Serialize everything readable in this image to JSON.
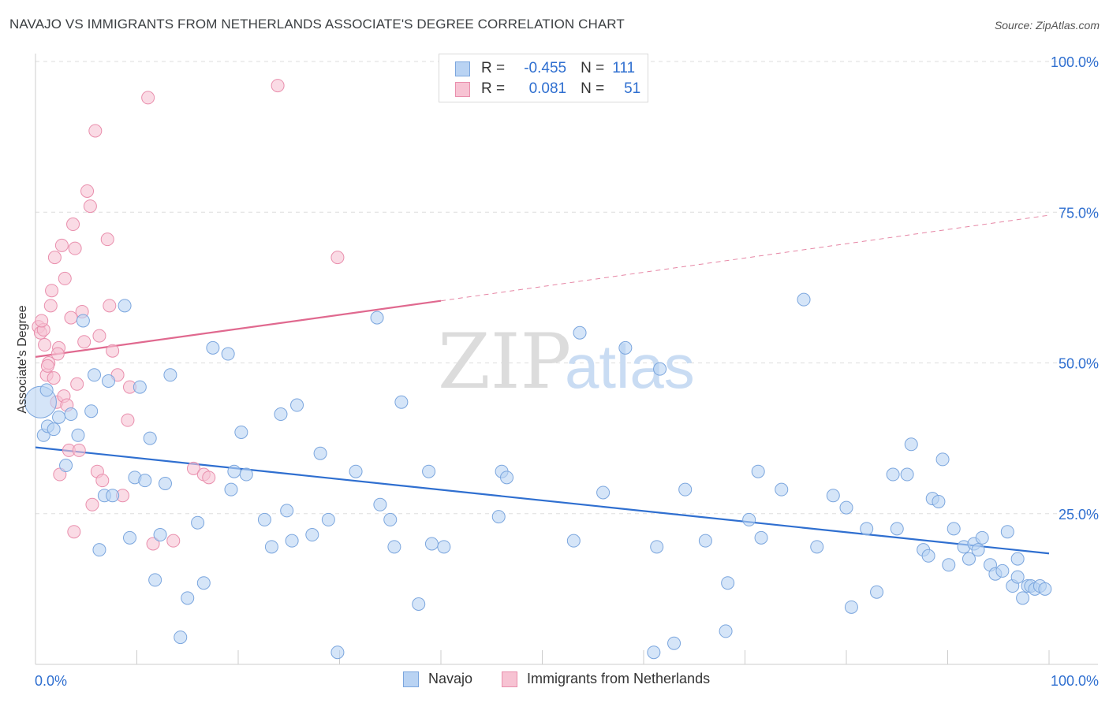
{
  "title": "NAVAJO VS IMMIGRANTS FROM NETHERLANDS ASSOCIATE'S DEGREE CORRELATION CHART",
  "source": "Source: ZipAtlas.com",
  "watermark": {
    "zip": "ZIP",
    "atlas": "atlas"
  },
  "legend_top": {
    "rows": [
      {
        "r_label": "R =",
        "r_value": "-0.455",
        "n_label": "N =",
        "n_value": "111"
      },
      {
        "r_label": "R =",
        "r_value": "0.081",
        "n_label": "N =",
        "n_value": "51"
      }
    ]
  },
  "colors": {
    "navajo_fill": "#b9d3f3",
    "navajo_stroke": "#7ba6de",
    "navajo_line": "#2f6fd0",
    "neth_fill": "#f7c3d3",
    "neth_stroke": "#e98fad",
    "neth_line": "#e0698f",
    "axis_label": "#2f6fd0",
    "grid": "#dddddd"
  },
  "chart_data": {
    "type": "scatter",
    "title": "NAVAJO VS IMMIGRANTS FROM NETHERLANDS ASSOCIATE'S DEGREE CORRELATION CHART",
    "xlabel": "",
    "ylabel": "Associate's Degree",
    "xlim": [
      0,
      100
    ],
    "ylim": [
      0,
      100
    ],
    "x_tick_labels": [
      "0.0%",
      "100.0%"
    ],
    "y_tick_labels": [
      "25.0%",
      "50.0%",
      "75.0%",
      "100.0%"
    ],
    "y_ticks": [
      25,
      50,
      75,
      100
    ],
    "grid": true,
    "legend": "bottom-center",
    "series": [
      {
        "name": "Navajo",
        "points": [
          [
            0.5,
            43.5
          ],
          [
            0.8,
            38
          ],
          [
            1.2,
            39.5
          ],
          [
            1.8,
            39
          ],
          [
            2.3,
            41
          ],
          [
            1.1,
            45.5
          ],
          [
            3,
            33
          ],
          [
            3.5,
            41.5
          ],
          [
            4.2,
            38
          ],
          [
            4.7,
            57
          ],
          [
            5.5,
            42
          ],
          [
            5.8,
            48
          ],
          [
            6.3,
            19
          ],
          [
            6.8,
            28
          ],
          [
            7.6,
            28
          ],
          [
            7.2,
            47
          ],
          [
            8.8,
            59.5
          ],
          [
            9.3,
            21
          ],
          [
            9.8,
            31
          ],
          [
            10.3,
            46
          ],
          [
            10.8,
            30.5
          ],
          [
            11.3,
            37.5
          ],
          [
            11.8,
            14
          ],
          [
            12.3,
            21.5
          ],
          [
            12.8,
            30
          ],
          [
            13.3,
            48
          ],
          [
            14.3,
            4.5
          ],
          [
            15,
            11
          ],
          [
            16,
            23.5
          ],
          [
            16.6,
            13.5
          ],
          [
            17.5,
            52.5
          ],
          [
            19,
            51.5
          ],
          [
            19.3,
            29
          ],
          [
            19.6,
            32
          ],
          [
            20.3,
            38.5
          ],
          [
            20.8,
            31.5
          ],
          [
            22.6,
            24
          ],
          [
            23.3,
            19.5
          ],
          [
            24.2,
            41.5
          ],
          [
            25.3,
            20.5
          ],
          [
            24.8,
            25.5
          ],
          [
            25.8,
            43
          ],
          [
            27.3,
            21.5
          ],
          [
            28.1,
            35
          ],
          [
            28.9,
            24
          ],
          [
            29.8,
            2
          ],
          [
            31.6,
            32
          ],
          [
            33.7,
            57.5
          ],
          [
            34,
            26.5
          ],
          [
            35,
            24
          ],
          [
            35.4,
            19.5
          ],
          [
            36.1,
            43.5
          ],
          [
            37.8,
            10
          ],
          [
            38.8,
            32
          ],
          [
            39.1,
            20
          ],
          [
            46,
            32
          ],
          [
            46.5,
            31
          ],
          [
            45.7,
            24.5
          ],
          [
            53.1,
            20.5
          ],
          [
            53.7,
            55
          ],
          [
            56,
            28.5
          ],
          [
            58.2,
            52.5
          ],
          [
            61,
            2
          ],
          [
            61.3,
            19.5
          ],
          [
            61.6,
            49
          ],
          [
            63,
            3.5
          ],
          [
            64.1,
            29
          ],
          [
            66.1,
            20.5
          ],
          [
            68.1,
            5.5
          ],
          [
            68.3,
            13.5
          ],
          [
            70.4,
            24
          ],
          [
            71.3,
            32
          ],
          [
            71.6,
            21
          ],
          [
            73.6,
            29
          ],
          [
            75.8,
            60.5
          ],
          [
            77.1,
            19.5
          ],
          [
            78.7,
            28
          ],
          [
            80,
            26
          ],
          [
            80.5,
            9.5
          ],
          [
            82,
            22.5
          ],
          [
            83,
            12
          ],
          [
            84.6,
            31.5
          ],
          [
            85,
            22.5
          ],
          [
            86,
            31.5
          ],
          [
            86.4,
            36.5
          ],
          [
            87.6,
            19
          ],
          [
            88.1,
            18
          ],
          [
            88.5,
            27.5
          ],
          [
            89.1,
            27
          ],
          [
            89.5,
            34
          ],
          [
            90.1,
            16.5
          ],
          [
            90.6,
            22.5
          ],
          [
            91.6,
            19.5
          ],
          [
            92.1,
            17.5
          ],
          [
            92.6,
            20
          ],
          [
            93,
            19
          ],
          [
            93.4,
            21
          ],
          [
            94.2,
            16.5
          ],
          [
            94.7,
            15
          ],
          [
            95.4,
            15.5
          ],
          [
            95.9,
            22
          ],
          [
            96.4,
            13
          ],
          [
            96.9,
            17.5
          ],
          [
            97.4,
            11
          ],
          [
            97.9,
            13
          ],
          [
            98.2,
            13
          ],
          [
            98.6,
            12.5
          ],
          [
            99.1,
            13
          ],
          [
            99.6,
            12.5
          ],
          [
            96.9,
            14.5
          ],
          [
            40.3,
            19.5
          ]
        ],
        "trend": {
          "x": [
            0,
            100
          ],
          "y": [
            36,
            18.4
          ]
        }
      },
      {
        "name": "Immigrants from Netherlands",
        "points": [
          [
            0.3,
            56
          ],
          [
            0.5,
            55
          ],
          [
            0.8,
            55.5
          ],
          [
            0.9,
            53
          ],
          [
            1.1,
            48
          ],
          [
            1.3,
            50
          ],
          [
            1.5,
            59.5
          ],
          [
            1.6,
            62
          ],
          [
            1.8,
            47.5
          ],
          [
            1.9,
            67.5
          ],
          [
            2.1,
            43.5
          ],
          [
            2.3,
            52.5
          ],
          [
            2.4,
            31.5
          ],
          [
            2.6,
            69.5
          ],
          [
            2.8,
            44.5
          ],
          [
            2.9,
            64
          ],
          [
            3.1,
            43
          ],
          [
            3.3,
            35.5
          ],
          [
            3.5,
            57.5
          ],
          [
            3.7,
            73
          ],
          [
            3.8,
            22
          ],
          [
            3.9,
            69
          ],
          [
            4.1,
            46.5
          ],
          [
            4.3,
            35.5
          ],
          [
            4.6,
            58.5
          ],
          [
            4.8,
            53.5
          ],
          [
            5.1,
            78.5
          ],
          [
            5.4,
            76
          ],
          [
            5.6,
            26.5
          ],
          [
            5.9,
            88.5
          ],
          [
            6.1,
            32
          ],
          [
            6.3,
            54.5
          ],
          [
            6.6,
            30.5
          ],
          [
            7.1,
            70.5
          ],
          [
            7.3,
            59.5
          ],
          [
            7.6,
            52
          ],
          [
            8.1,
            48
          ],
          [
            8.6,
            28
          ],
          [
            9.1,
            40.5
          ],
          [
            9.3,
            46
          ],
          [
            11.1,
            94
          ],
          [
            11.6,
            20
          ],
          [
            13.6,
            20.5
          ],
          [
            15.6,
            32.5
          ],
          [
            16.6,
            31.5
          ],
          [
            17.1,
            31
          ],
          [
            23.9,
            96
          ],
          [
            29.8,
            67.5
          ],
          [
            0.6,
            57
          ],
          [
            1.2,
            49.5
          ],
          [
            2.2,
            51.5
          ]
        ],
        "trend": {
          "x": [
            0,
            40
          ],
          "y": [
            51,
            60.3
          ]
        },
        "trend_extension": {
          "x": [
            40,
            100
          ],
          "y": [
            60.3,
            74.5
          ]
        }
      }
    ]
  }
}
